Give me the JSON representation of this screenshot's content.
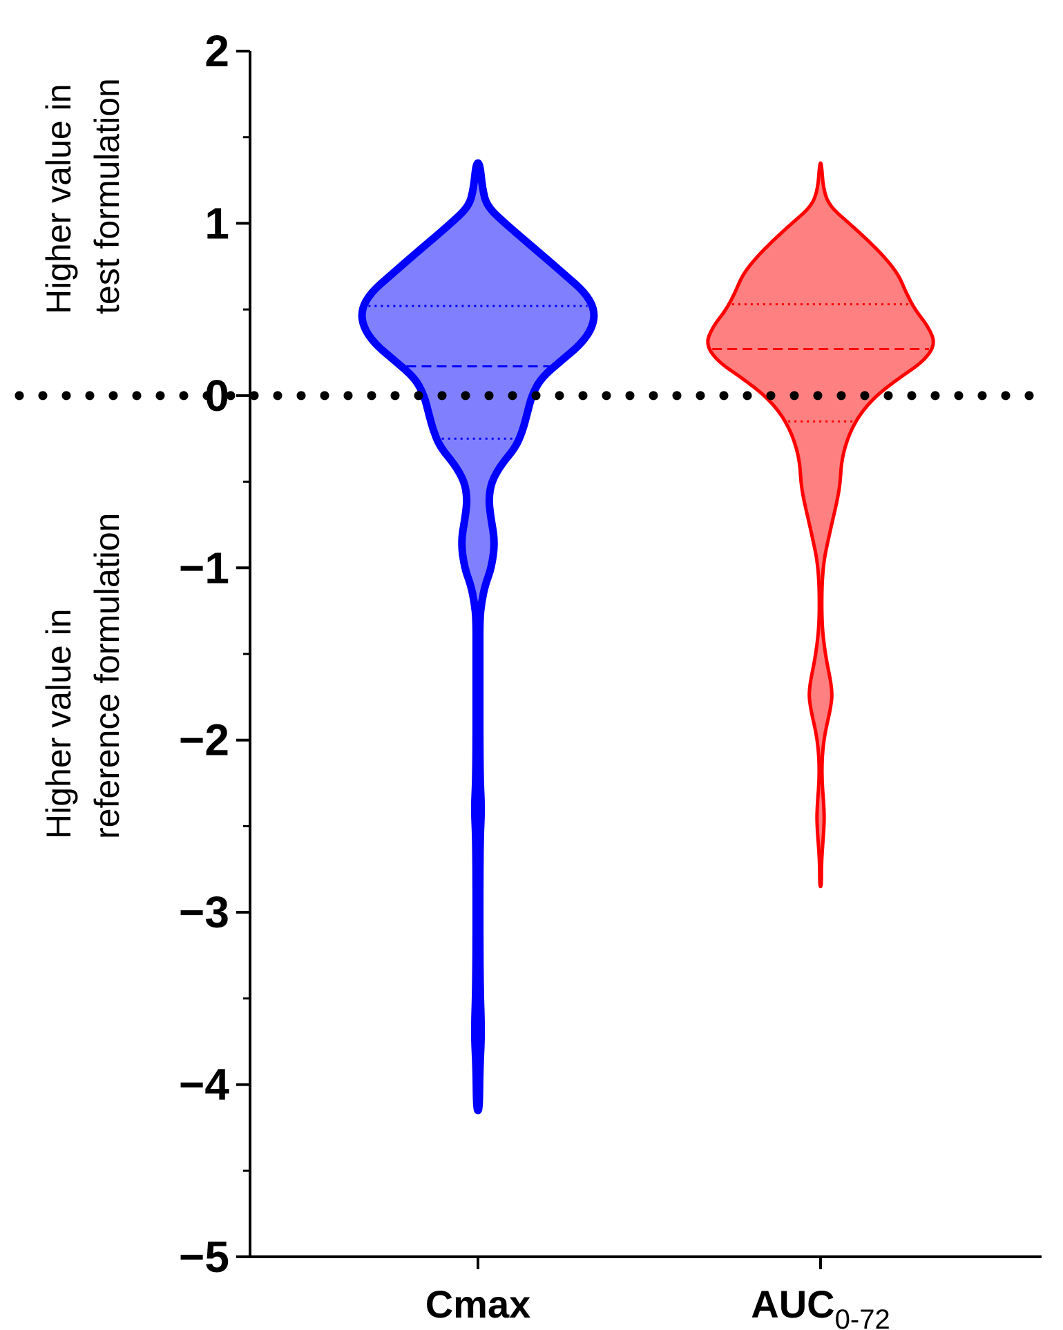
{
  "chart_data": {
    "type": "violin",
    "title": "",
    "xlabel": "",
    "ylabel": "",
    "ylim": [
      -5,
      2
    ],
    "yticks": [
      2,
      1,
      0,
      -1,
      -2,
      -3,
      -4,
      -5
    ],
    "ytick_labels": [
      "2",
      "1",
      "0",
      "−1",
      "−2",
      "−3",
      "−4",
      "−5"
    ],
    "minor_ticks": [
      1.5,
      0.5,
      -0.5,
      -1.5,
      -2.5,
      -3.5,
      -4.5
    ],
    "reference_line": {
      "y": 0,
      "style": "dotted",
      "color": "#000000"
    },
    "side_labels": {
      "upper": [
        "Higher value in",
        "test formulation"
      ],
      "lower": [
        "Higher value in",
        "reference formulation"
      ]
    },
    "categories": [
      {
        "label": "Cmax",
        "sub": ""
      },
      {
        "label": "AUC",
        "sub": "0-72"
      }
    ],
    "series": [
      {
        "name": "Cmax",
        "color": "#0000ff",
        "fill": "#8080ff",
        "min": -4.15,
        "max": 1.35,
        "q1": -0.25,
        "median": 0.17,
        "q3": 0.52,
        "profile": [
          [
            1.35,
            0.02
          ],
          [
            1.2,
            0.05
          ],
          [
            1.1,
            0.1
          ],
          [
            1.0,
            0.3
          ],
          [
            0.8,
            0.75
          ],
          [
            0.7,
            0.97
          ],
          [
            0.6,
            1.19
          ],
          [
            0.5,
            1.3
          ],
          [
            0.4,
            1.28
          ],
          [
            0.3,
            1.15
          ],
          [
            0.2,
            0.92
          ],
          [
            0.1,
            0.7
          ],
          [
            0.0,
            0.6
          ],
          [
            -0.1,
            0.55
          ],
          [
            -0.2,
            0.5
          ],
          [
            -0.3,
            0.42
          ],
          [
            -0.4,
            0.26
          ],
          [
            -0.5,
            0.15
          ],
          [
            -0.6,
            0.12
          ],
          [
            -0.7,
            0.14
          ],
          [
            -0.85,
            0.19
          ],
          [
            -1.0,
            0.15
          ],
          [
            -1.1,
            0.08
          ],
          [
            -1.2,
            0.04
          ],
          [
            -1.3,
            0.02
          ],
          [
            -1.5,
            0.02
          ],
          [
            -2.2,
            0.02
          ],
          [
            -2.4,
            0.04
          ],
          [
            -2.6,
            0.02
          ],
          [
            -3.4,
            0.02
          ],
          [
            -3.7,
            0.04
          ],
          [
            -3.9,
            0.02
          ],
          [
            -4.15,
            0.015
          ]
        ]
      },
      {
        "name": "AUC0-72",
        "color": "#ff0000",
        "fill": "#ff8080",
        "min": -2.85,
        "max": 1.35,
        "q1": -0.15,
        "median": 0.27,
        "q3": 0.53,
        "profile": [
          [
            1.35,
            0.01
          ],
          [
            1.2,
            0.03
          ],
          [
            1.1,
            0.1
          ],
          [
            1.0,
            0.32
          ],
          [
            0.9,
            0.53
          ],
          [
            0.8,
            0.72
          ],
          [
            0.7,
            0.87
          ],
          [
            0.6,
            0.95
          ],
          [
            0.5,
            1.05
          ],
          [
            0.4,
            1.2
          ],
          [
            0.3,
            1.28
          ],
          [
            0.2,
            1.15
          ],
          [
            0.1,
            0.87
          ],
          [
            0.0,
            0.62
          ],
          [
            -0.1,
            0.45
          ],
          [
            -0.2,
            0.34
          ],
          [
            -0.3,
            0.27
          ],
          [
            -0.4,
            0.23
          ],
          [
            -0.5,
            0.22
          ],
          [
            -0.6,
            0.19
          ],
          [
            -0.8,
            0.1
          ],
          [
            -1.0,
            0.02
          ],
          [
            -1.3,
            0.01
          ],
          [
            -1.5,
            0.05
          ],
          [
            -1.7,
            0.13
          ],
          [
            -1.8,
            0.12
          ],
          [
            -2.0,
            0.03
          ],
          [
            -2.2,
            0.01
          ],
          [
            -2.4,
            0.04
          ],
          [
            -2.5,
            0.04
          ],
          [
            -2.7,
            0.01
          ],
          [
            -2.85,
            0.01
          ]
        ]
      }
    ]
  }
}
